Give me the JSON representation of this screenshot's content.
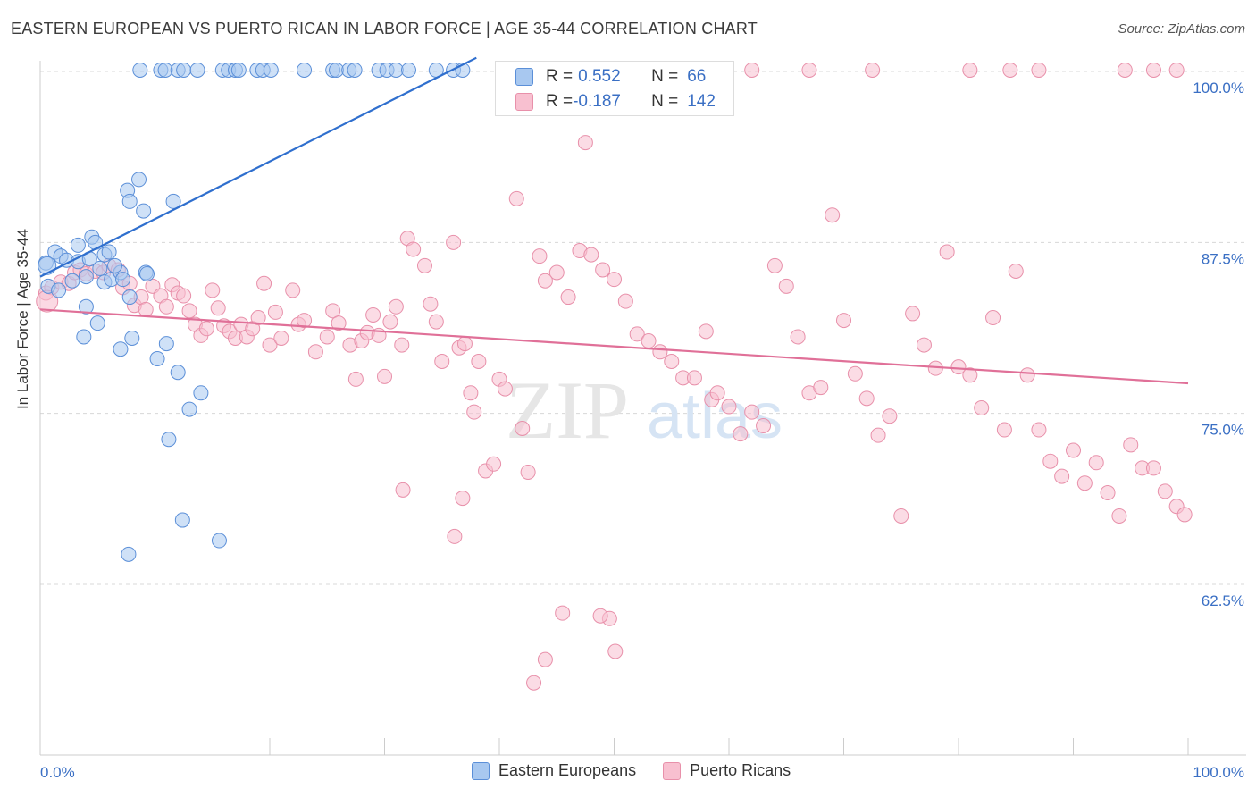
{
  "header": {
    "title": "EASTERN EUROPEAN VS PUERTO RICAN IN LABOR FORCE | AGE 35-44 CORRELATION CHART",
    "source": "Source: ZipAtlas.com"
  },
  "colors": {
    "blue_fill": "#a8c8f0",
    "blue_stroke": "#5b8fd8",
    "blue_line": "#2f6fce",
    "pink_fill": "#f8c0d0",
    "pink_stroke": "#e890aa",
    "pink_line": "#e07098",
    "axis_text": "#3a6fc4",
    "grid": "#d8d8d8"
  },
  "stats_box": {
    "rows": [
      {
        "r_label": "R = ",
        "r_value": "0.552",
        "n_label": "N = ",
        "n_value": "66",
        "color": "blue"
      },
      {
        "r_label": "R = ",
        "r_value": "-0.187",
        "n_label": "N = ",
        "n_value": "142",
        "color": "pink"
      }
    ]
  },
  "legend": {
    "items": [
      {
        "label": "Eastern Europeans",
        "color": "blue"
      },
      {
        "label": "Puerto Ricans",
        "color": "pink"
      }
    ]
  },
  "chart_data": {
    "type": "scatter",
    "title": "EASTERN EUROPEAN VS PUERTO RICAN IN LABOR FORCE | AGE 35-44 CORRELATION CHART",
    "xlabel": "",
    "ylabel": "In Labor Force | Age 35-44",
    "xlim": [
      0,
      100
    ],
    "ylim": [
      52,
      102
    ],
    "x_tick_labels": [
      {
        "value": 0,
        "label": "0.0%"
      },
      {
        "value": 100,
        "label": "100.0%"
      }
    ],
    "y_tick_labels": [
      {
        "value": 100,
        "label": "100.0%"
      },
      {
        "value": 87.5,
        "label": "87.5%"
      },
      {
        "value": 75,
        "label": "75.0%"
      },
      {
        "value": 62.5,
        "label": "62.5%"
      }
    ],
    "grid": true,
    "watermark": "ZIPatlas",
    "series": [
      {
        "name": "Eastern Europeans",
        "color": "blue",
        "trend": {
          "x": [
            0,
            38
          ],
          "y": [
            85,
            101
          ]
        },
        "points": [
          [
            0.5,
            86
          ],
          [
            1.3,
            86.8
          ],
          [
            1.8,
            86.5
          ],
          [
            2.3,
            86.2
          ],
          [
            2.8,
            84.7
          ],
          [
            3.3,
            86.1
          ],
          [
            3.3,
            87.3
          ],
          [
            4.5,
            87.9
          ],
          [
            4.8,
            87.5
          ],
          [
            5.6,
            86.6
          ],
          [
            4.3,
            86.3
          ],
          [
            4.0,
            85
          ],
          [
            5.6,
            84.6
          ],
          [
            5.2,
            85.6
          ],
          [
            6.0,
            86.8
          ],
          [
            6.2,
            84.8
          ],
          [
            7.0,
            85.3
          ],
          [
            7.6,
            91.3
          ],
          [
            7.8,
            90.5
          ],
          [
            8.6,
            92.1
          ],
          [
            9.0,
            89.8
          ],
          [
            9.2,
            85.3
          ],
          [
            11.6,
            90.5
          ],
          [
            9.3,
            85.2
          ],
          [
            7.2,
            84.8
          ],
          [
            7.8,
            83.5
          ],
          [
            6.5,
            85.8
          ],
          [
            4.0,
            82.8
          ],
          [
            5.0,
            81.6
          ],
          [
            3.8,
            80.6
          ],
          [
            7.0,
            79.7
          ],
          [
            8.0,
            80.5
          ],
          [
            10.2,
            79.0
          ],
          [
            11.0,
            80.1
          ],
          [
            12.0,
            78.0
          ],
          [
            14.0,
            76.5
          ],
          [
            13.0,
            75.3
          ],
          [
            11.2,
            73.1
          ],
          [
            12.4,
            67.2
          ],
          [
            15.6,
            65.7
          ],
          [
            7.7,
            64.7
          ],
          [
            0.7,
            84.3
          ],
          [
            1.6,
            84
          ],
          [
            8.7,
            100.1
          ],
          [
            10.5,
            100.1
          ],
          [
            10.9,
            100.1
          ],
          [
            12.0,
            100.1
          ],
          [
            12.5,
            100.1
          ],
          [
            13.7,
            100.1
          ],
          [
            15.9,
            100.1
          ],
          [
            16.4,
            100.1
          ],
          [
            17.0,
            100.1
          ],
          [
            17.3,
            100.1
          ],
          [
            18.9,
            100.1
          ],
          [
            19.4,
            100.1
          ],
          [
            20.1,
            100.1
          ],
          [
            23.0,
            100.1
          ],
          [
            25.5,
            100.1
          ],
          [
            25.8,
            100.1
          ],
          [
            26.9,
            100.1
          ],
          [
            27.4,
            100.1
          ],
          [
            29.5,
            100.1
          ],
          [
            30.2,
            100.1
          ],
          [
            31.0,
            100.1
          ],
          [
            32.1,
            100.1
          ],
          [
            34.5,
            100.1
          ],
          [
            36.0,
            100.1
          ],
          [
            36.8,
            100.1
          ]
        ]
      },
      {
        "name": "Puerto Ricans",
        "color": "pink",
        "trend": {
          "x": [
            0,
            100
          ],
          "y": [
            82.6,
            77.2
          ]
        },
        "points": [
          [
            0.5,
            83.8
          ],
          [
            1.0,
            84.2
          ],
          [
            1.8,
            84.6
          ],
          [
            2.5,
            84.5
          ],
          [
            3.0,
            85.3
          ],
          [
            3.5,
            85.5
          ],
          [
            4.0,
            85.2
          ],
          [
            4.8,
            85.4
          ],
          [
            5.5,
            85.3
          ],
          [
            6.0,
            85.8
          ],
          [
            6.8,
            85.5
          ],
          [
            7.2,
            84.2
          ],
          [
            7.8,
            84.5
          ],
          [
            8.2,
            82.9
          ],
          [
            8.8,
            83.5
          ],
          [
            9.2,
            82.6
          ],
          [
            9.8,
            84.3
          ],
          [
            10.5,
            83.6
          ],
          [
            11.0,
            82.8
          ],
          [
            11.5,
            84.4
          ],
          [
            12.0,
            83.8
          ],
          [
            12.5,
            83.6
          ],
          [
            13.0,
            82.5
          ],
          [
            13.5,
            81.5
          ],
          [
            14.0,
            80.7
          ],
          [
            14.5,
            81.2
          ],
          [
            15.0,
            84.0
          ],
          [
            15.5,
            82.7
          ],
          [
            16.0,
            81.4
          ],
          [
            16.5,
            81.0
          ],
          [
            17.0,
            80.5
          ],
          [
            17.5,
            81.5
          ],
          [
            18.0,
            80.6
          ],
          [
            18.5,
            81.2
          ],
          [
            19.0,
            82.0
          ],
          [
            19.5,
            84.5
          ],
          [
            20.0,
            80.0
          ],
          [
            20.5,
            82.4
          ],
          [
            21.0,
            80.5
          ],
          [
            22.0,
            84.0
          ],
          [
            22.5,
            81.5
          ],
          [
            23.0,
            81.8
          ],
          [
            24.0,
            79.5
          ],
          [
            25.0,
            80.6
          ],
          [
            25.5,
            82.5
          ],
          [
            26.0,
            81.6
          ],
          [
            27.0,
            80.0
          ],
          [
            27.5,
            77.5
          ],
          [
            28.0,
            80.3
          ],
          [
            28.5,
            80.9
          ],
          [
            29.0,
            82.2
          ],
          [
            29.5,
            80.7
          ],
          [
            30.0,
            77.7
          ],
          [
            30.5,
            81.7
          ],
          [
            31.0,
            82.8
          ],
          [
            31.5,
            80.0
          ],
          [
            32.0,
            87.8
          ],
          [
            32.5,
            87.0
          ],
          [
            33.5,
            85.8
          ],
          [
            34.0,
            83.0
          ],
          [
            34.5,
            81.7
          ],
          [
            35.0,
            78.8
          ],
          [
            36.0,
            87.5
          ],
          [
            36.5,
            79.8
          ],
          [
            37.0,
            80.1
          ],
          [
            37.5,
            76.5
          ],
          [
            37.8,
            75.1
          ],
          [
            38.2,
            78.8
          ],
          [
            38.8,
            70.8
          ],
          [
            39.5,
            71.3
          ],
          [
            40.0,
            77.5
          ],
          [
            40.5,
            76.8
          ],
          [
            41.5,
            90.7
          ],
          [
            42.0,
            73.9
          ],
          [
            42.5,
            70.7
          ],
          [
            43.5,
            86.5
          ],
          [
            44.0,
            84.7
          ],
          [
            45.0,
            85.3
          ],
          [
            46.0,
            83.5
          ],
          [
            47.0,
            86.9
          ],
          [
            47.5,
            94.8
          ],
          [
            48.0,
            86.6
          ],
          [
            49.0,
            85.5
          ],
          [
            50.0,
            84.8
          ],
          [
            51.0,
            83.2
          ],
          [
            52.0,
            80.8
          ],
          [
            53.0,
            80.3
          ],
          [
            54.0,
            79.5
          ],
          [
            55.0,
            78.8
          ],
          [
            56.0,
            77.6
          ],
          [
            57.0,
            77.6
          ],
          [
            58.0,
            81.0
          ],
          [
            58.5,
            76.0
          ],
          [
            59.0,
            76.5
          ],
          [
            60.0,
            75.5
          ],
          [
            61.0,
            73.5
          ],
          [
            62.0,
            75.1
          ],
          [
            63.0,
            74.1
          ],
          [
            64.0,
            85.8
          ],
          [
            65.0,
            84.3
          ],
          [
            66.0,
            80.6
          ],
          [
            67.0,
            76.5
          ],
          [
            68.0,
            76.9
          ],
          [
            69.0,
            89.5
          ],
          [
            70.0,
            81.8
          ],
          [
            71.0,
            77.9
          ],
          [
            72.0,
            76.1
          ],
          [
            73.0,
            73.4
          ],
          [
            74.0,
            74.8
          ],
          [
            75.0,
            67.5
          ],
          [
            76.0,
            82.3
          ],
          [
            77.0,
            80.0
          ],
          [
            78.0,
            78.3
          ],
          [
            79.0,
            86.8
          ],
          [
            80.0,
            78.4
          ],
          [
            81.0,
            77.8
          ],
          [
            82.0,
            75.4
          ],
          [
            83.0,
            82.0
          ],
          [
            84.0,
            73.8
          ],
          [
            85.0,
            85.4
          ],
          [
            86.0,
            77.8
          ],
          [
            87.0,
            73.8
          ],
          [
            88.0,
            71.5
          ],
          [
            89.0,
            70.4
          ],
          [
            90.0,
            72.3
          ],
          [
            91.0,
            69.9
          ],
          [
            92.0,
            71.4
          ],
          [
            93.0,
            69.2
          ],
          [
            94.0,
            67.5
          ],
          [
            95.0,
            72.7
          ],
          [
            96.0,
            71.0
          ],
          [
            97.0,
            71.0
          ],
          [
            98.0,
            69.3
          ],
          [
            99.0,
            68.2
          ],
          [
            99.7,
            67.6
          ],
          [
            49.6,
            60.0
          ],
          [
            48.8,
            60.2
          ],
          [
            45.5,
            60.4
          ],
          [
            44.0,
            57.0
          ],
          [
            43.0,
            55.3
          ],
          [
            36.8,
            68.8
          ],
          [
            31.6,
            69.4
          ],
          [
            36.1,
            66.0
          ],
          [
            50.1,
            57.6
          ],
          [
            47.0,
            100.1
          ],
          [
            50.0,
            100.1
          ],
          [
            55.0,
            100.1
          ],
          [
            62.0,
            100.1
          ],
          [
            67.0,
            100.1
          ],
          [
            72.5,
            100.1
          ],
          [
            81.0,
            100.1
          ],
          [
            84.5,
            100.1
          ],
          [
            87.0,
            100.1
          ],
          [
            94.5,
            100.1
          ],
          [
            97.0,
            100.1
          ],
          [
            99.0,
            100.1
          ]
        ]
      }
    ]
  }
}
